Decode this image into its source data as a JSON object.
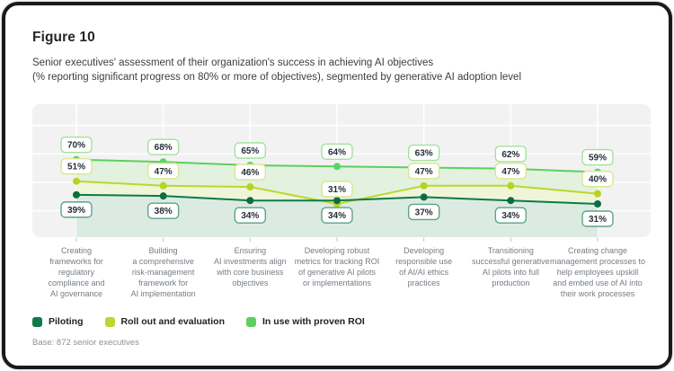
{
  "figure": {
    "label": "Figure 10",
    "subtitle": "Senior executives' assessment of their organization's success in achieving AI objectives\n(% reporting significant progress on 80% or more of objectives), segmented by generative AI adoption level"
  },
  "base_note": "Base: 872 senior executives",
  "chart_data": {
    "type": "line",
    "title": "Figure 10",
    "subtitle": "Senior executives' assessment of their organization's success in achieving AI objectives (% reporting significant progress on 80% or more of objectives), segmented by generative AI adoption level",
    "categories": [
      "Creating\nframeworks for\nregulatory\ncompliance and\nAI governance",
      "Building\na comprehensive\nrisk-management\nframework for\nAI implementation",
      "Ensuring\nAI investments align\nwith core business\nobjectives",
      "Developing robust\nmetrics for tracking ROI\nof generative AI pilots\nor implementations",
      "Developing\nresponsible use\nof AI/AI ethics\npractices",
      "Transitioning\nsuccessful generative\nAI pilots into full\nproduction",
      "Creating change\nmanagement processes to\nhelp employees upskill\nand embed use of AI into\ntheir work processes"
    ],
    "series": [
      {
        "name": "Piloting",
        "values": [
          39,
          38,
          34,
          34,
          37,
          34,
          31
        ],
        "color": "#0e7a47",
        "dot_color": "#0c6e40",
        "label_border": "#5ba487",
        "label_position": "below"
      },
      {
        "name": "Roll out and evaluation",
        "values": [
          51,
          47,
          46,
          31,
          47,
          47,
          40
        ],
        "color": "#bdd62f",
        "dot_color": "#b5d41c",
        "label_border": "#dbe590",
        "label_position": "above"
      },
      {
        "name": "In use with proven ROI",
        "values": [
          70,
          68,
          65,
          64,
          63,
          62,
          59
        ],
        "color": "#5ecf5e",
        "dot_color": "#58d563",
        "label_border": "#a2e29d",
        "label_position": "above"
      }
    ],
    "unit": "%",
    "ylim": [
      0,
      118
    ],
    "grid": "on",
    "gridline_values": [
      25,
      50,
      75,
      100
    ],
    "legend_position": "bottom",
    "colors": {
      "plot_bg": "#f2f2f2",
      "gridline": "#ffffff",
      "band_green_to_rollout": "#e2f2de",
      "band_rollout_to_piloting": "#eef5d9",
      "band_below_piloting": "#dcebe2",
      "value_label_bg": "#ffffff",
      "value_label_text": "#252f38",
      "tick": "#c5c5c5"
    }
  }
}
